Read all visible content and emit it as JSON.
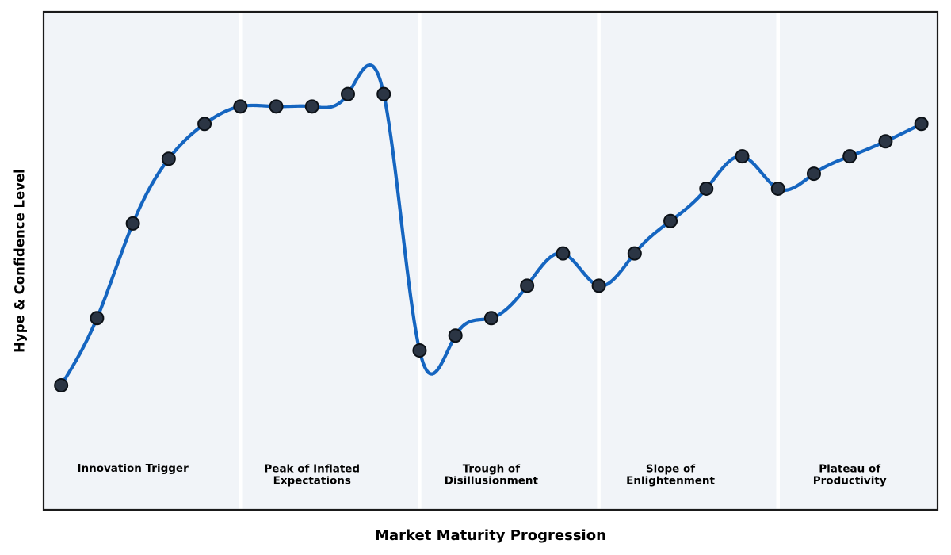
{
  "chart_data": {
    "type": "line",
    "title": "",
    "xlabel": "Market Maturity Progression",
    "ylabel": "Hype & Confidence Level",
    "legend": "none",
    "grid": false,
    "smoothing": "cubic-spline",
    "x": [
      0,
      1,
      2,
      3,
      4,
      5,
      6,
      7,
      8,
      9,
      10,
      11,
      12,
      13,
      14,
      15,
      16,
      17,
      18,
      19,
      20,
      21,
      22,
      23,
      24
    ],
    "values": [
      25,
      38.5,
      57.5,
      70.5,
      77.5,
      81,
      81,
      81,
      83.5,
      83.5,
      32,
      35,
      38.5,
      45,
      51.5,
      45,
      51.5,
      58,
      64.5,
      71,
      64.5,
      67.5,
      71,
      74,
      77.5
    ],
    "xlim": [
      -0.49,
      24.45
    ],
    "ylim": [
      0,
      100
    ],
    "phase_separators_x": [
      5,
      10,
      15,
      20
    ],
    "phases": [
      {
        "label": "Innovation Trigger",
        "x": 2
      },
      {
        "label": "Peak of Inflated\nExpectations",
        "x": 7
      },
      {
        "label": "Trough of\nDisillusionment",
        "x": 12
      },
      {
        "label": "Slope of\nEnlightenment",
        "x": 17
      },
      {
        "label": "Plateau of\nProductivity",
        "x": 22
      }
    ],
    "colors": {
      "line": "#1565c0",
      "marker_fill": "#2b3544",
      "marker_edge": "#0c1117",
      "plot_bg": "#f1f4f8",
      "separator": "#ffffff",
      "border": "#1a1a1a",
      "text": "#000000",
      "figure_bg": "#ffffff"
    }
  }
}
